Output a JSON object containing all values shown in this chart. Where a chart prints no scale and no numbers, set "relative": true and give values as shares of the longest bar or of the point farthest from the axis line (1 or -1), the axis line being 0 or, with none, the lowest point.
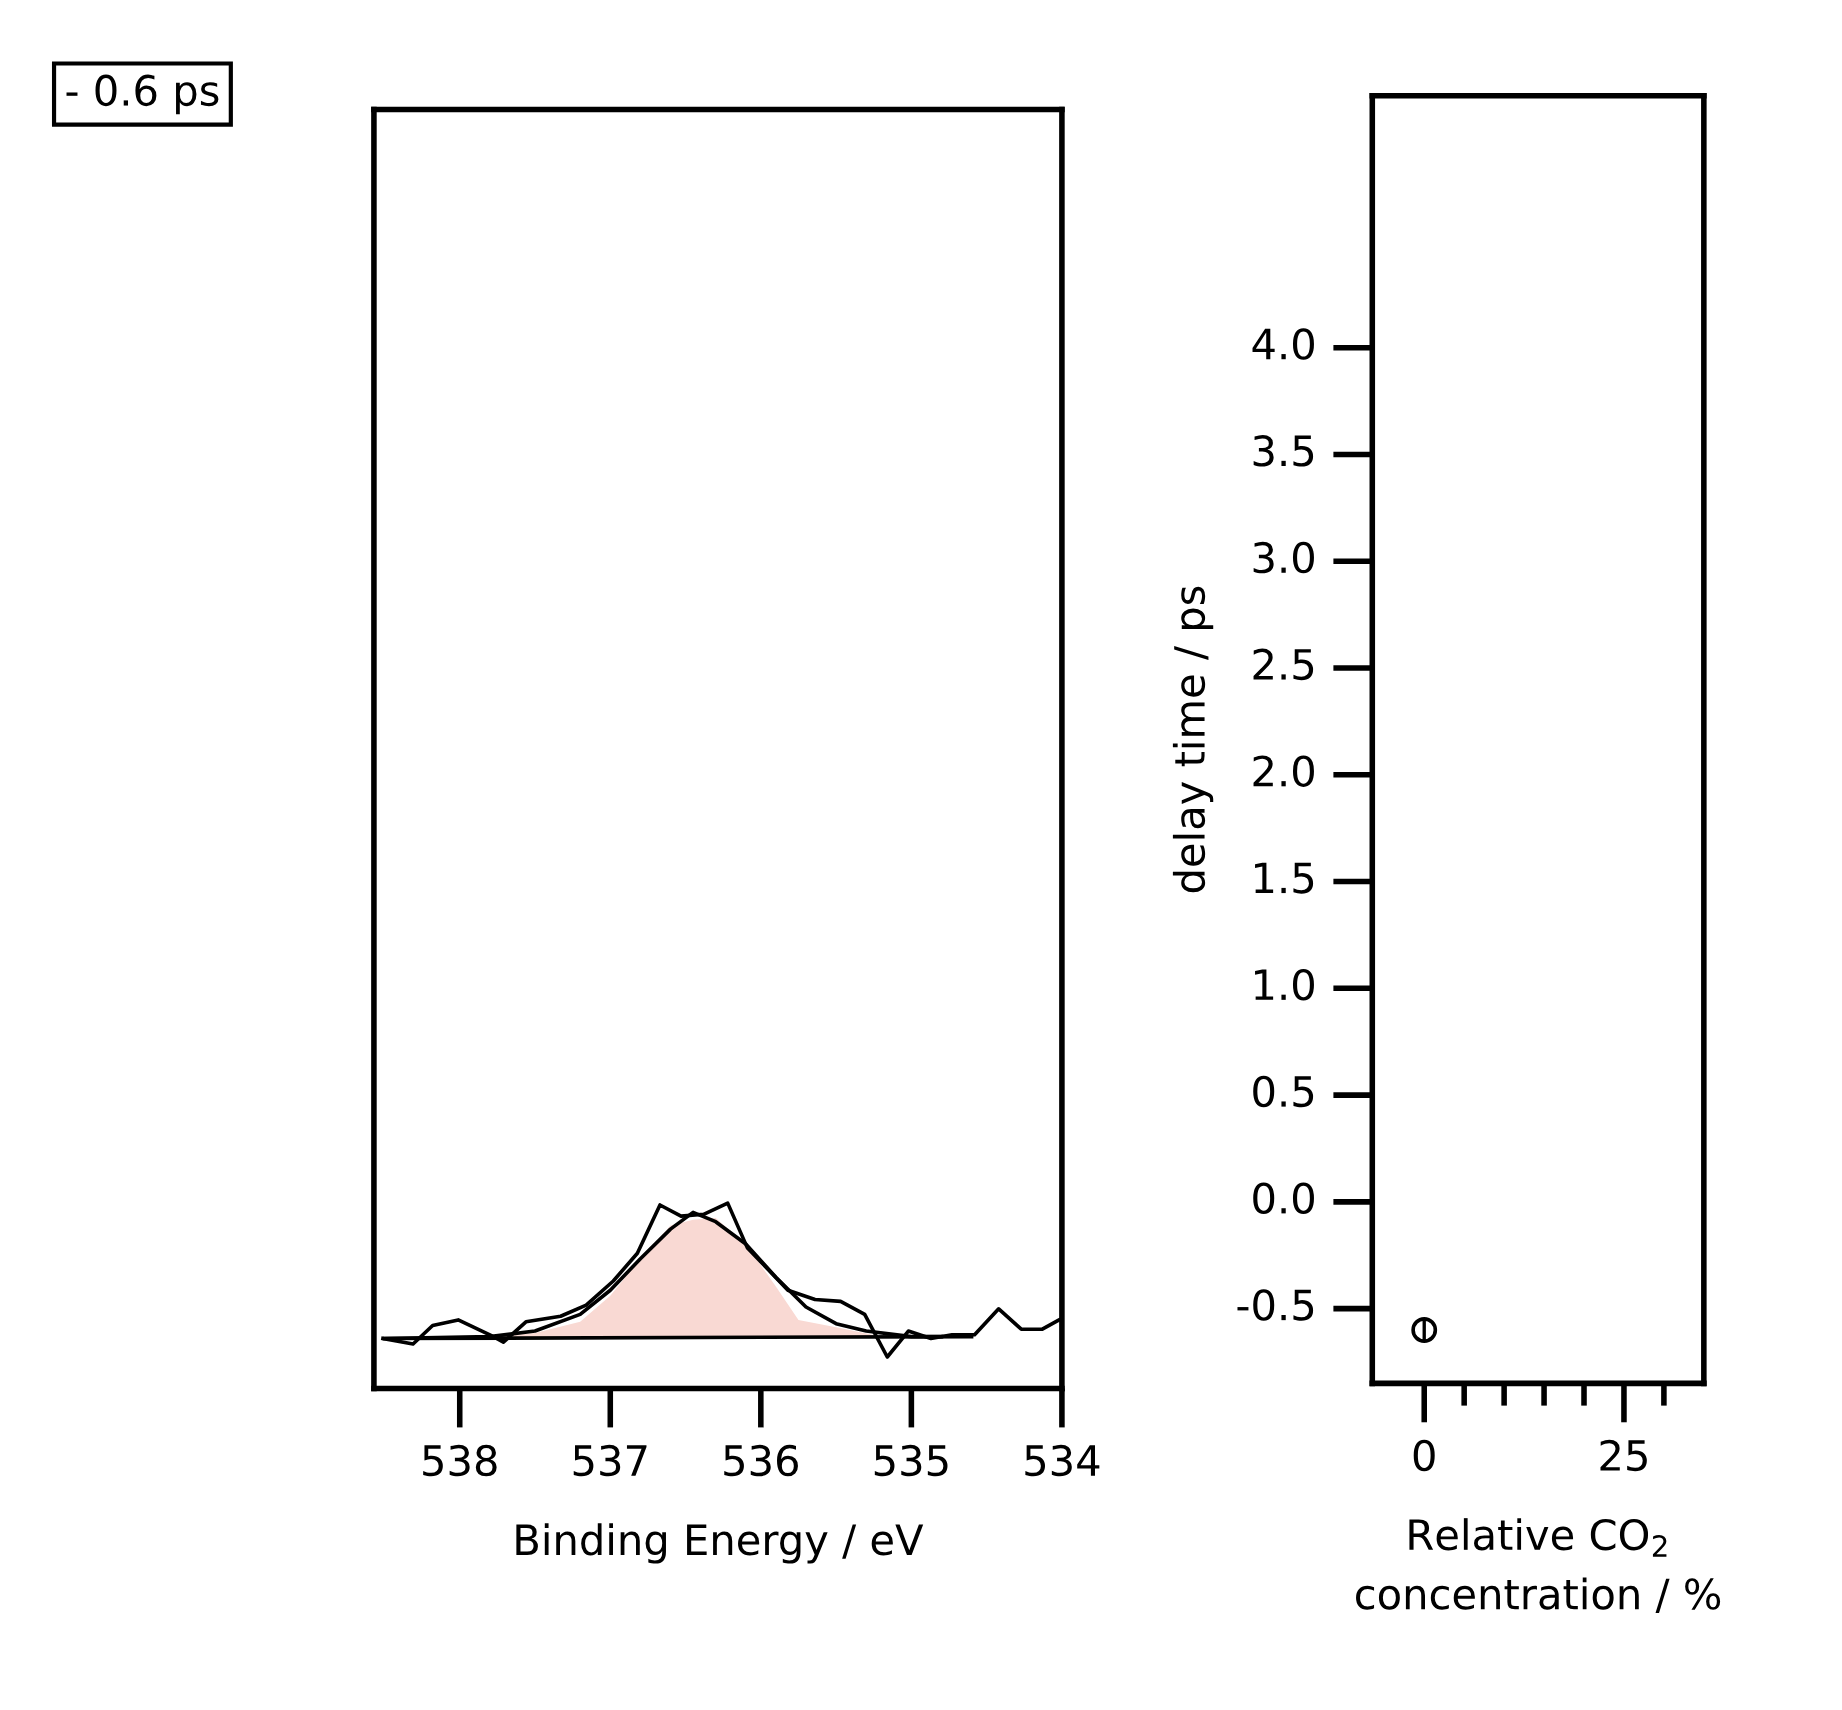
{
  "chart_data": [
    {
      "type": "line",
      "xlabel": "Binding Energy / eV",
      "relative": true,
      "xlim": [
        538.57,
        534.0
      ],
      "xticks": [
        538,
        537,
        536,
        535,
        534
      ],
      "tick_labels": "x",
      "grid": false,
      "legend": false,
      "annotations": [
        "- 0.6 ps"
      ],
      "series": [
        {
          "type": "area",
          "color": "#f9d9d3",
          "x": [
            538.3,
            538.0,
            537.5,
            537.2,
            537.0,
            536.8,
            536.6,
            536.45,
            536.3,
            536.1,
            535.9,
            535.75,
            535.5,
            535.2,
            535.0
          ],
          "values": [
            0.27,
            0.27,
            0.3,
            0.36,
            0.5,
            0.7,
            0.88,
            0.91,
            0.92,
            0.78,
            0.55,
            0.37,
            0.33,
            0.28,
            0.28
          ]
        },
        {
          "type": "line",
          "color": "#000000",
          "x": [
            538.51,
            538.31,
            538.18,
            538.01,
            537.8,
            537.71,
            537.56,
            537.33,
            537.16,
            536.98,
            536.82,
            536.67,
            536.53,
            536.38,
            536.22,
            536.09,
            535.82,
            535.64,
            535.47,
            535.31,
            535.16,
            535.02,
            534.87,
            534.73,
            534.58,
            534.42,
            534.27,
            534.13,
            534.02
          ],
          "values": [
            0.27,
            0.24,
            0.34,
            0.37,
            0.29,
            0.25,
            0.36,
            0.39,
            0.45,
            0.58,
            0.73,
            0.99,
            0.93,
            0.94,
            1.0,
            0.76,
            0.53,
            0.48,
            0.47,
            0.4,
            0.17,
            0.31,
            0.27,
            0.29,
            0.29,
            0.43,
            0.32,
            0.32,
            0.37
          ]
        },
        {
          "type": "line",
          "color": "#000000",
          "x": [
            538.5,
            537.8,
            537.5,
            537.2,
            537.0,
            536.8,
            536.6,
            536.45,
            536.3,
            536.1,
            535.9,
            535.7,
            535.5,
            535.3,
            535.0,
            534.8
          ],
          "values": [
            0.27,
            0.28,
            0.31,
            0.4,
            0.53,
            0.7,
            0.86,
            0.95,
            0.9,
            0.78,
            0.6,
            0.44,
            0.35,
            0.31,
            0.28,
            0.28
          ]
        },
        {
          "type": "line",
          "color": "#000000",
          "x": [
            538.5,
            534.6
          ],
          "values": [
            0.27,
            0.28
          ]
        }
      ]
    },
    {
      "type": "scatter",
      "xlabel": "Relative CO$_{2}$\nconcentration / %",
      "ylabel": "delay time / ps",
      "xlim": [
        -6.5,
        35
      ],
      "ylim": [
        -0.85,
        5.18
      ],
      "marker": "circle",
      "grid": false,
      "legend": false,
      "xticks": [
        0,
        {
          "value": 5,
          "label": null
        },
        {
          "value": 10,
          "label": null
        },
        {
          "value": 15,
          "label": null
        },
        {
          "value": 20,
          "label": null
        },
        25,
        {
          "value": 30,
          "label": null
        }
      ],
      "yticks": [
        {
          "value": -0.5,
          "label": "-0.5"
        },
        {
          "value": 0.0,
          "label": "0.0"
        },
        {
          "value": 0.5,
          "label": "0.5"
        },
        {
          "value": 1.0,
          "label": "1.0"
        },
        {
          "value": 1.5,
          "label": "1.5"
        },
        {
          "value": 2.0,
          "label": "2.0"
        },
        {
          "value": 2.5,
          "label": "2.5"
        },
        {
          "value": 3.0,
          "label": "3.0"
        },
        {
          "value": 3.5,
          "label": "3.5"
        },
        {
          "value": 4.0,
          "label": "4.0"
        }
      ],
      "series": [
        {
          "color": "#000000",
          "x": [
            0
          ],
          "values": [
            -0.6
          ],
          "errors": [
            0.05
          ]
        }
      ]
    }
  ]
}
